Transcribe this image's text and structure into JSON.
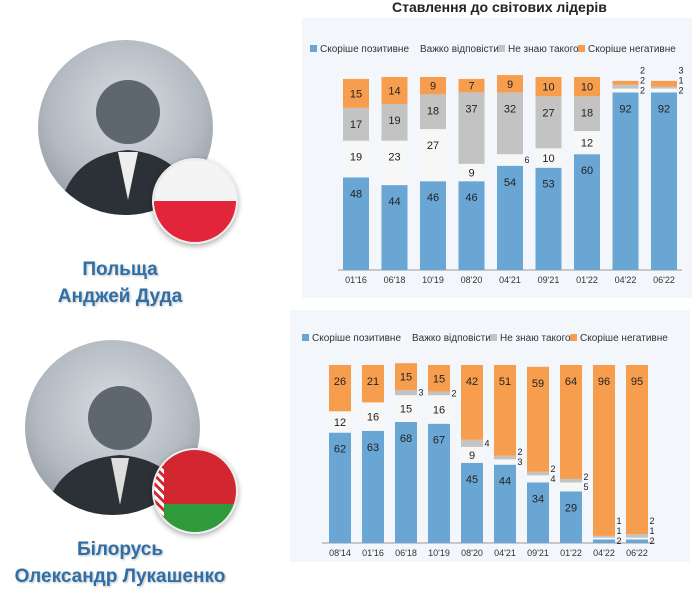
{
  "title": "Ставлення до світових лідерів",
  "people": [
    {
      "country": "Польща",
      "name": "Анджей Дуда",
      "flag": "poland-flag"
    },
    {
      "country": "Білорусь",
      "name": "Олександр Лукашенко",
      "flag": "belarus-flag"
    }
  ],
  "colors": {
    "positive": "#6aa6d4",
    "hard": "#f7f7f7",
    "unknown": "#c3c3c3",
    "negative": "#f79d4e"
  },
  "chart_data": [
    {
      "type": "bar",
      "stacked": true,
      "title": "Ставлення до світових лідерів",
      "subject": "Польща — Анджей Дуда",
      "categories": [
        "01'16",
        "06'18",
        "10'19",
        "08'20",
        "04'21",
        "09'21",
        "01'22",
        "04'22",
        "06'22"
      ],
      "legend": [
        "Скоріше позитивне",
        "Важко відповісти",
        "Не знаю такого",
        "Скоріше негативне"
      ],
      "series": [
        {
          "name": "Скоріше позитивне",
          "key": "positive",
          "values": [
            48,
            44,
            46,
            46,
            54,
            53,
            60,
            92,
            92
          ]
        },
        {
          "name": "Важко відповісти",
          "key": "hard",
          "values": [
            19,
            23,
            27,
            9,
            6,
            10,
            12,
            2,
            2
          ]
        },
        {
          "name": "Не знаю такого",
          "key": "unknown",
          "values": [
            17,
            19,
            18,
            37,
            32,
            27,
            18,
            2,
            1
          ]
        },
        {
          "name": "Скоріше негативне",
          "key": "negative",
          "values": [
            15,
            14,
            9,
            7,
            9,
            10,
            10,
            2,
            3
          ]
        }
      ],
      "ylim": [
        0,
        100
      ]
    },
    {
      "type": "bar",
      "stacked": true,
      "subject": "Білорусь — Олександр Лукашенко",
      "categories": [
        "08'14",
        "01'16",
        "06'18",
        "10'19",
        "08'20",
        "04'21",
        "09'21",
        "01'22",
        "04'22",
        "06'22"
      ],
      "legend": [
        "Скоріше позитивне",
        "Важко відповісти",
        "Не знаю такого",
        "Скоріше негативне"
      ],
      "series": [
        {
          "name": "Скоріше позитивне",
          "key": "positive",
          "values": [
            62,
            63,
            68,
            67,
            45,
            44,
            34,
            29,
            2,
            2
          ]
        },
        {
          "name": "Важко відповісти",
          "key": "hard",
          "values": [
            12,
            16,
            15,
            16,
            9,
            3,
            4,
            5,
            1,
            1
          ]
        },
        {
          "name": "Не знаю такого",
          "key": "unknown",
          "values": [
            0,
            0,
            3,
            2,
            4,
            2,
            2,
            2,
            1,
            2
          ]
        },
        {
          "name": "Скоріше негативне",
          "key": "negative",
          "values": [
            26,
            21,
            15,
            15,
            42,
            51,
            59,
            64,
            96,
            95
          ]
        }
      ],
      "ylim": [
        0,
        100
      ]
    }
  ]
}
